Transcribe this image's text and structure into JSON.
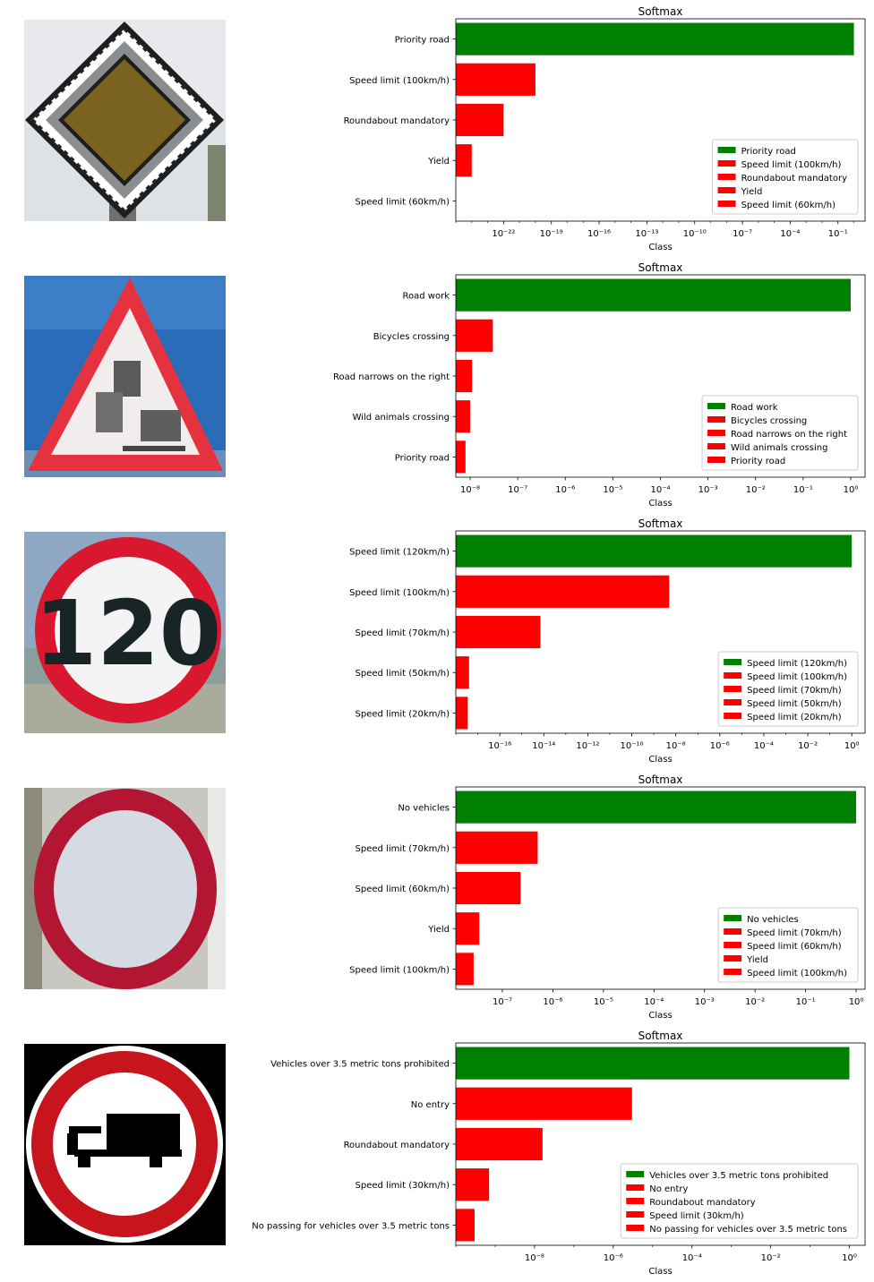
{
  "colors": {
    "top_bar": "#008000",
    "other_bar": "#ff0000"
  },
  "chart_data": [
    {
      "type": "bar",
      "orientation": "horizontal",
      "title": "Softmax",
      "xlabel": "Class",
      "xscale": "log",
      "xlim": [
        1e-25,
        5
      ],
      "xticks": [
        -22,
        -19,
        -16,
        -13,
        -10,
        -7,
        -4,
        -1
      ],
      "categories": [
        "Priority road",
        "Speed limit (100km/h)",
        "Roundabout mandatory",
        "Yield",
        "Speed limit (60km/h)"
      ],
      "values": [
        1.0,
        1e-20,
        1e-22,
        1e-24,
        1e-25
      ],
      "legend_position": "lower-right",
      "image": {
        "type": "priority-road-sign"
      }
    },
    {
      "type": "bar",
      "orientation": "horizontal",
      "title": "Softmax",
      "xlabel": "Class",
      "xscale": "log",
      "xlim": [
        5e-09,
        2
      ],
      "xticks": [
        -8,
        -7,
        -6,
        -5,
        -4,
        -3,
        -2,
        -1,
        0
      ],
      "categories": [
        "Road work",
        "Bicycles crossing",
        "Road narrows on the right",
        "Wild animals crossing",
        "Priority road"
      ],
      "values": [
        1.0,
        3e-08,
        1.1e-08,
        1e-08,
        8e-09
      ],
      "legend_position": "lower-right",
      "image": {
        "type": "road-work-sign"
      }
    },
    {
      "type": "bar",
      "orientation": "horizontal",
      "title": "Softmax",
      "xlabel": "Class",
      "xscale": "log",
      "xlim": [
        1e-18,
        4
      ],
      "xticks": [
        -16,
        -14,
        -12,
        -10,
        -8,
        -6,
        -4,
        -2,
        0
      ],
      "categories": [
        "Speed limit (120km/h)",
        "Speed limit (100km/h)",
        "Speed limit (70km/h)",
        "Speed limit (50km/h)",
        "Speed limit (20km/h)"
      ],
      "values": [
        1.0,
        5e-09,
        7e-15,
        4e-18,
        3.5e-18
      ],
      "legend_position": "lower-right",
      "image": {
        "type": "speed-limit-sign",
        "text": "120"
      }
    },
    {
      "type": "bar",
      "orientation": "horizontal",
      "title": "Softmax",
      "xlabel": "Class",
      "xscale": "log",
      "xlim": [
        1.2e-08,
        1.5
      ],
      "xticks": [
        -7,
        -6,
        -5,
        -4,
        -3,
        -2,
        -1,
        0
      ],
      "categories": [
        "No vehicles",
        "Speed limit (70km/h)",
        "Speed limit (60km/h)",
        "Yield",
        "Speed limit (100km/h)"
      ],
      "values": [
        1.0,
        5e-07,
        2.3e-07,
        3.5e-08,
        2.7e-08
      ],
      "legend_position": "lower-right",
      "image": {
        "type": "no-vehicles-sign"
      }
    },
    {
      "type": "bar",
      "orientation": "horizontal",
      "title": "Softmax",
      "xlabel": "Class",
      "xscale": "log",
      "xlim": [
        1e-10,
        2.5
      ],
      "xticks": [
        -8,
        -6,
        -4,
        -2,
        0
      ],
      "categories": [
        "Vehicles over 3.5 metric tons prohibited",
        "No entry",
        "Roundabout mandatory",
        "Speed limit (30km/h)",
        "No passing for vehicles over 3.5 metric tons"
      ],
      "values": [
        1.0,
        3e-06,
        1.6e-08,
        7e-10,
        3e-10
      ],
      "legend_position": "lower-right",
      "image": {
        "type": "no-trucks-sign"
      }
    }
  ]
}
